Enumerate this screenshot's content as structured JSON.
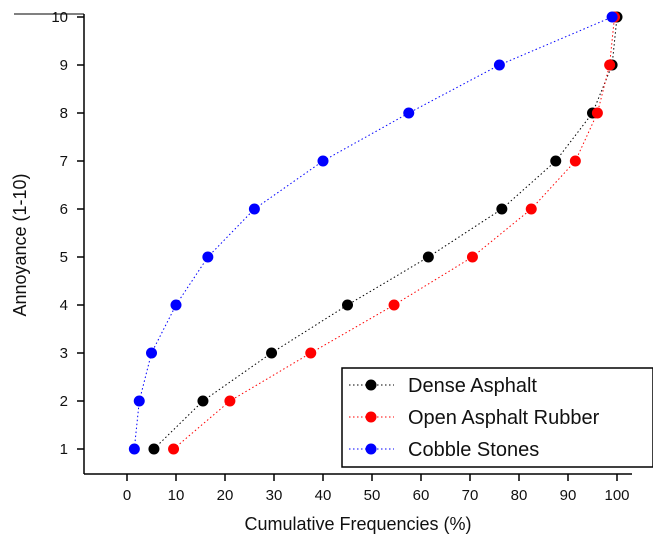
{
  "chart_data": {
    "type": "scatter",
    "xlabel": "Cumulative Frequencies (%)",
    "ylabel": "Annoyance (1-10)",
    "xlim": [
      -8,
      108
    ],
    "ylim": [
      0.6,
      10.2
    ],
    "xticks": [
      0,
      10,
      20,
      30,
      40,
      50,
      60,
      70,
      80,
      90,
      100
    ],
    "yticks": [
      1,
      2,
      3,
      4,
      5,
      6,
      7,
      8,
      9,
      10
    ],
    "grid": false,
    "legend_position": "bottom-right",
    "line_style": "dotted",
    "series": [
      {
        "name": "Dense Asphalt",
        "color": "#000000",
        "x": [
          5.5,
          15.5,
          29.5,
          45,
          61.5,
          76.5,
          87.5,
          95,
          99,
          100
        ],
        "y": [
          1,
          2,
          3,
          4,
          5,
          6,
          7,
          8,
          9,
          10
        ]
      },
      {
        "name": "Open Asphalt Rubber",
        "color": "#ff0000",
        "x": [
          9.5,
          21,
          37.5,
          54.5,
          70.5,
          82.5,
          91.5,
          96,
          98.5,
          99.5
        ],
        "y": [
          1,
          2,
          3,
          4,
          5,
          6,
          7,
          8,
          9,
          10
        ]
      },
      {
        "name": "Cobble Stones",
        "color": "#0000ff",
        "x": [
          1.5,
          2.5,
          5,
          10,
          16.5,
          26,
          40,
          57.5,
          76,
          99
        ],
        "y": [
          1,
          2,
          3,
          4,
          5,
          6,
          7,
          8,
          9,
          10
        ]
      }
    ]
  }
}
